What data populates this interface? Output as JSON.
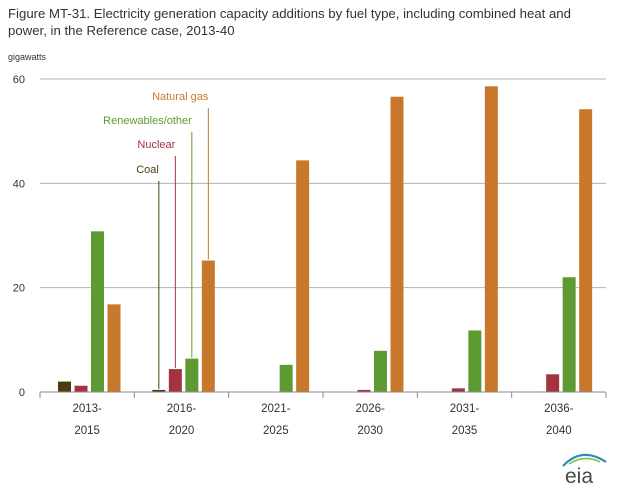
{
  "title": "Figure MT-31. Electricity generation capacity additions by fuel type, including combined heat and power, in the Reference case, 2013-40",
  "logo": "eia",
  "chart_data": {
    "type": "bar",
    "title": "Figure MT-31. Electricity generation capacity additions by fuel type, including combined heat and power, in the Reference case, 2013-40",
    "ylabel": "gigawatts",
    "xlabel": "",
    "ylim": [
      0,
      60
    ],
    "yticks": [
      0,
      20,
      40,
      60
    ],
    "grid": true,
    "legend": "inline labels with leader lines",
    "categories": [
      {
        "line1": "2013-",
        "line2": "2015"
      },
      {
        "line1": "2016-",
        "line2": "2020"
      },
      {
        "line1": "2021-",
        "line2": "2025"
      },
      {
        "line1": "2026-",
        "line2": "2030"
      },
      {
        "line1": "2031-",
        "line2": "2035"
      },
      {
        "line1": "2036-",
        "line2": "2040"
      }
    ],
    "series": [
      {
        "name": "Coal",
        "color": "#4a3c10",
        "values": [
          2.0,
          0.4,
          0,
          0,
          0,
          0.1
        ]
      },
      {
        "name": "Nuclear",
        "color": "#a33340",
        "values": [
          1.2,
          4.4,
          0,
          0.4,
          0.7,
          3.4
        ]
      },
      {
        "name": "Renewables/other",
        "color": "#5e9a32",
        "values": [
          30.8,
          6.4,
          5.2,
          7.9,
          11.8,
          22.0
        ]
      },
      {
        "name": "Natural gas",
        "color": "#c9782b",
        "values": [
          16.8,
          25.2,
          44.4,
          56.6,
          58.6,
          54.2
        ]
      }
    ]
  }
}
